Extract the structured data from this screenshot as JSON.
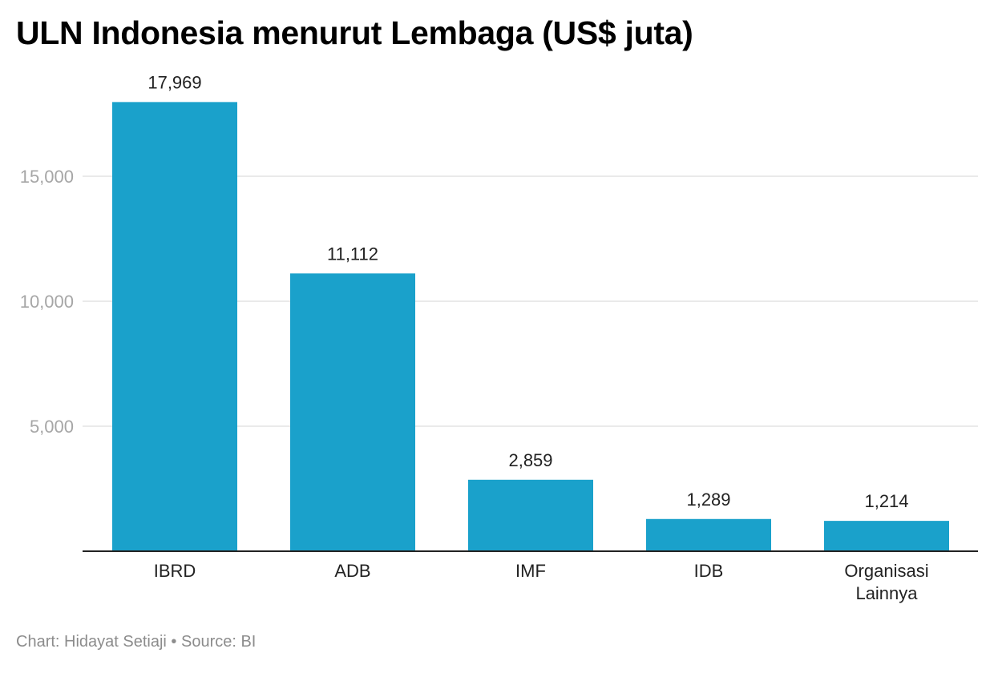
{
  "chart_data": {
    "type": "bar",
    "title": "ULN Indonesia menurut Lembaga (US$ juta)",
    "categories": [
      "IBRD",
      "ADB",
      "IMF",
      "IDB",
      "Organisasi Lainnya"
    ],
    "values": [
      17969,
      11112,
      2859,
      1289,
      1214
    ],
    "data_labels": [
      "17,969",
      "11,112",
      "2,859",
      "1,289",
      "1,214"
    ],
    "y_ticks": [
      5000,
      10000,
      15000
    ],
    "y_tick_labels": [
      "5,000",
      "10,000",
      "15,000"
    ],
    "ylim": [
      0,
      18000
    ],
    "grid": true,
    "xlabel": "",
    "ylabel": "",
    "bar_color": "#1aa1cb",
    "footer": "Chart: Hidayat Setiaji • Source: BI"
  }
}
